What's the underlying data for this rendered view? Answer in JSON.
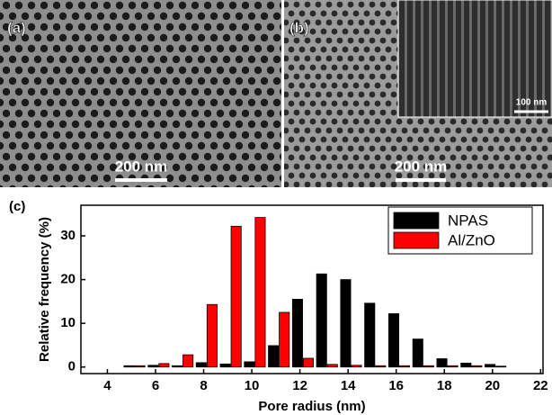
{
  "images": {
    "panels": [
      {
        "label": "(a)",
        "scale_bar": "200 nm"
      },
      {
        "label": "(b)",
        "scale_bar": "200 nm",
        "inset_scale_bar": "100 nm"
      }
    ],
    "chart_label": "(c)"
  },
  "chart_data": {
    "type": "bar",
    "x_label": "Pore radius (nm)",
    "y_label": "Relative frequency (%)",
    "xlim": [
      2.9,
      22.1
    ],
    "xticks": [
      4,
      6,
      8,
      10,
      12,
      14,
      16,
      18,
      20,
      22
    ],
    "ylim": [
      -1.5,
      37
    ],
    "yticks": [
      0,
      10,
      20,
      30
    ],
    "legend": "upper right",
    "series": [
      {
        "name": "NPAS",
        "color": "#000000",
        "x": [
          4.9,
          5.9,
          6.9,
          7.9,
          8.9,
          9.9,
          10.9,
          11.9,
          12.9,
          13.9,
          14.9,
          15.9,
          16.9,
          17.9,
          18.9,
          19.9
        ],
        "values": [
          0.3,
          0.4,
          0.3,
          1,
          0.7,
          1.2,
          4.9,
          15.5,
          21.3,
          20,
          14.6,
          12.2,
          6.4,
          1.9,
          0.9,
          0.6
        ]
      },
      {
        "name": "Al/ZnO",
        "color": "#ff0000",
        "x": [
          5.35,
          6.35,
          7.35,
          8.35,
          9.35,
          10.35,
          11.35,
          12.35,
          13.35,
          14.35,
          15.35,
          16.35,
          17.35,
          18.35,
          19.35,
          20.35
        ],
        "values": [
          0.3,
          0.8,
          2.8,
          14.3,
          32.2,
          34.2,
          12.5,
          2,
          0.6,
          0.4,
          0.3,
          0.3,
          0.3,
          0.3,
          0.3,
          0.2
        ]
      }
    ]
  }
}
